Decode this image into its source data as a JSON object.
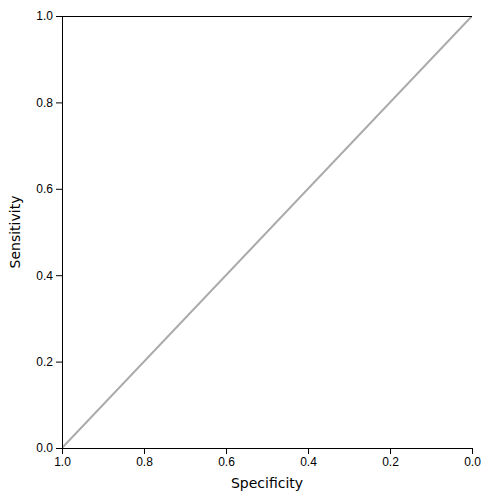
{
  "chart_data": {
    "type": "line",
    "series": [
      {
        "color": "#aaaaaa",
        "x": [
          1.0,
          0.0
        ],
        "values": [
          0.0,
          1.0
        ]
      },
      {
        "color": "#000000",
        "x": [
          1.0,
          1.0,
          0.0
        ],
        "values": [
          0.0,
          1.0,
          1.0
        ]
      }
    ],
    "xlabel": "Specificity",
    "ylabel": "Sensitivity",
    "xlim": [
      1.0,
      0.0
    ],
    "ylim": [
      0.0,
      1.0
    ],
    "xticks": [
      {
        "value": 1.0,
        "label": "1.0"
      },
      0.8,
      0.6,
      0.4,
      0.2,
      {
        "value": 0.0,
        "label": "0.0"
      }
    ],
    "yticks": [
      {
        "value": 0.0,
        "label": "0.0"
      },
      0.2,
      0.4,
      0.6,
      0.8,
      {
        "value": 1.0,
        "label": "1.0"
      }
    ],
    "grid": false
  }
}
